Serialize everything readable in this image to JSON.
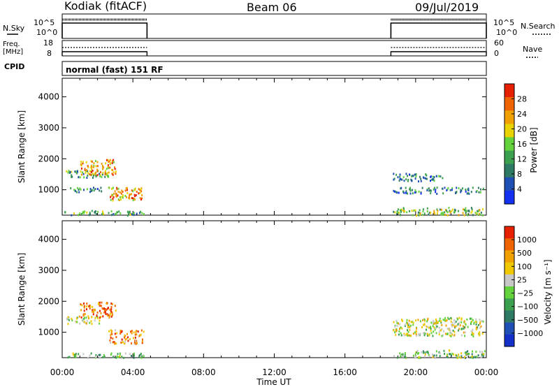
{
  "header": {
    "station": "Kodiak (fitACF)",
    "beam": "Beam 06",
    "date": "09/Jul/2019"
  },
  "summary": {
    "nsky_label": "N.Sky",
    "nsky_ticks": [
      "10^5",
      "10^0"
    ],
    "nsearch_label": "N.Search",
    "freq_label_line1": "Freq.",
    "freq_label_line2": "[MHz]",
    "freq_ticks": [
      "18",
      "8"
    ],
    "nave_ticks": [
      "60",
      "0"
    ],
    "nave_label": "Nave",
    "cpid_label": "CPID",
    "cpid_text": "normal (fast) 151 RF"
  },
  "colors": {
    "power_scale": [
      "#1430f0",
      "#2050b4",
      "#2e7a64",
      "#3ca050",
      "#64d23c",
      "#e8d200",
      "#f0a000",
      "#f06400",
      "#e62000"
    ],
    "velocity_scale": [
      "#1430c8",
      "#2050b4",
      "#2e7a64",
      "#3ca050",
      "#64d23c",
      "#c8c8c8",
      "#f0c800",
      "#f0a000",
      "#f06400",
      "#e62000"
    ]
  },
  "chart_data": [
    {
      "type": "heatmap",
      "name": "power",
      "title": "",
      "xlabel": "",
      "ylabel": "Slant Range [km]",
      "xlim": [
        0,
        24
      ],
      "ylim": [
        180,
        4600
      ],
      "yticks": [
        1000,
        2000,
        3000,
        4000
      ],
      "data_hours": [
        [
          0.0,
          4.8
        ],
        [
          18.6,
          24.0
        ]
      ],
      "colorbar": {
        "label": "Power [dB]",
        "ticks": [
          "28",
          "24",
          "20",
          "16",
          "12",
          "8",
          "4"
        ],
        "range": [
          0,
          32
        ]
      },
      "echo_regions": [
        {
          "t": [
            0.1,
            4.6
          ],
          "range": [
            200,
            350
          ],
          "level": 3
        },
        {
          "t": [
            0.2,
            2.2
          ],
          "range": [
            950,
            1100
          ],
          "level": 2
        },
        {
          "t": [
            0.2,
            2.6
          ],
          "range": [
            1400,
            1650
          ],
          "level": 3
        },
        {
          "t": [
            1.0,
            3.0
          ],
          "range": [
            1500,
            2000
          ],
          "level": 6
        },
        {
          "t": [
            2.6,
            4.6
          ],
          "range": [
            650,
            1100
          ],
          "level": 6
        },
        {
          "t": [
            18.7,
            23.9
          ],
          "range": [
            200,
            450
          ],
          "level": 4
        },
        {
          "t": [
            18.7,
            23.8
          ],
          "range": [
            900,
            1100
          ],
          "level": 2
        },
        {
          "t": [
            18.7,
            21.5
          ],
          "range": [
            1300,
            1550
          ],
          "level": 2
        }
      ]
    },
    {
      "type": "heatmap",
      "name": "velocity",
      "title": "",
      "xlabel": "Time UT",
      "ylabel": "Slant Range [km]",
      "xlim": [
        0,
        24
      ],
      "ylim": [
        180,
        4600
      ],
      "yticks": [
        1000,
        2000,
        3000,
        4000
      ],
      "xticks": [
        "00:00",
        "04:00",
        "08:00",
        "12:00",
        "16:00",
        "20:00",
        "00:00"
      ],
      "xtick_hours": [
        0,
        4,
        8,
        12,
        16,
        20,
        24
      ],
      "data_hours": [
        [
          0.0,
          4.8
        ],
        [
          18.6,
          24.0
        ]
      ],
      "colorbar": {
        "label": "Velocity [m s⁻¹]",
        "ticks": [
          "1000",
          "500",
          "100",
          "25",
          "−25",
          "−100",
          "−500",
          "−1000"
        ]
      },
      "echo_regions": [
        {
          "t": [
            0.1,
            4.6
          ],
          "range": [
            200,
            350
          ],
          "level": 4
        },
        {
          "t": [
            0.2,
            2.2
          ],
          "range": [
            1300,
            1550
          ],
          "level": 5
        },
        {
          "t": [
            1.0,
            3.0
          ],
          "range": [
            1500,
            2000
          ],
          "level": 8
        },
        {
          "t": [
            2.6,
            4.6
          ],
          "range": [
            650,
            1100
          ],
          "level": 7
        },
        {
          "t": [
            18.7,
            23.9
          ],
          "range": [
            200,
            450
          ],
          "level": 4
        },
        {
          "t": [
            18.7,
            23.8
          ],
          "range": [
            900,
            1500
          ],
          "level": 5
        }
      ]
    }
  ]
}
